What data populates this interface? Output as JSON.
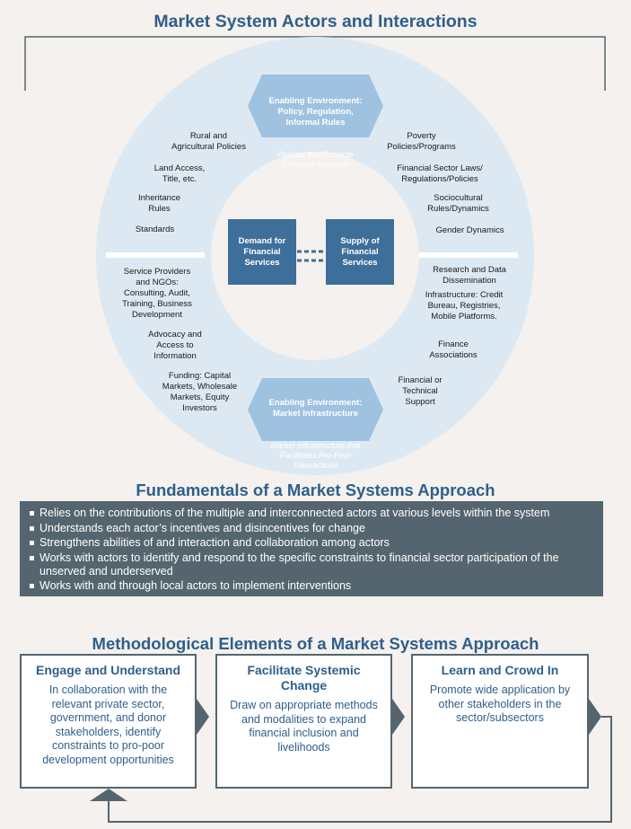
{
  "title": "Market System Actors and Interactions",
  "top_hex": {
    "title": "Enabling Environment:\nPolicy, Regulation,\nInformal Rules",
    "subtitle": "Policies that Promote\nFinancial Inclusion"
  },
  "bottom_hex": {
    "title": "Enabling Environment:\nMarket Infrastructure",
    "subtitle": "Market Infrastructure that\nFacilitates Pro-Poor\nTransactions"
  },
  "center": {
    "demand": "Demand for\nFinancial\nServices",
    "supply": "Supply of\nFinancial\nServices"
  },
  "ring_labels": {
    "rural": "Rural and\nAgricultural Policies",
    "land": "Land Access,\nTitle, etc.",
    "inheritance": "Inheritance\nRules",
    "standards": "Standards",
    "poverty": "Poverty\nPolicies/Programs",
    "financial_laws": "Financial Sector Laws/\nRegulations/Policies",
    "sociocultural": "Sociocultural\nRules/Dynamics",
    "gender": "Gender Dynamics",
    "service_providers": "Service Providers\nand NGOs:\nConsulting, Audit,\nTraining, Business\nDevelopment",
    "advocacy": "Advocacy and\nAccess to\nInformation",
    "funding": "Funding: Capital\nMarkets, Wholesale\nMarkets, Equity\nInvestors",
    "research": "Research and Data\nDissemination",
    "infrastructure": "Infrastructure: Credit\nBureau, Registries,\nMobile Platforms.",
    "finance_assoc": "Finance\nAssociations",
    "tech_support": "Financial or\nTechnical\nSupport"
  },
  "fundamentals": {
    "title": "Fundamentals of a Market Systems Approach",
    "bullets": [
      "Relies on the contributions of the multiple and interconnected actors at various levels within the system",
      "Understands each actor’s incentives and disincentives for change",
      "Strengthens abilities of and interaction and collaboration among actors",
      "Works with actors to identify and respond to the specific constraints to financial sector participation of the unserved and underserved",
      "Works with and through local actors to implement interventions"
    ]
  },
  "methodology": {
    "title": "Methodological Elements of a Market Systems Approach",
    "steps": [
      {
        "heading": "Engage and Understand",
        "text": "In collaboration with the relevant private sector, government, and donor stakeholders, identify constraints to pro-poor development opportunities"
      },
      {
        "heading": "Facilitate Systemic\nChange",
        "text": "Draw on appropriate methods and modalities to expand financial inclusion and livelihoods"
      },
      {
        "heading": "Learn and Crowd In",
        "text": "Promote wide application by other stakeholders in the sector/subsectors"
      }
    ]
  },
  "colors": {
    "title_blue": "#2e5f8c",
    "ring": "#dce9f3",
    "hexagon": "#9ec2e0",
    "center_box": "#3d6f9a",
    "fundamentals_bg": "#55656f"
  }
}
